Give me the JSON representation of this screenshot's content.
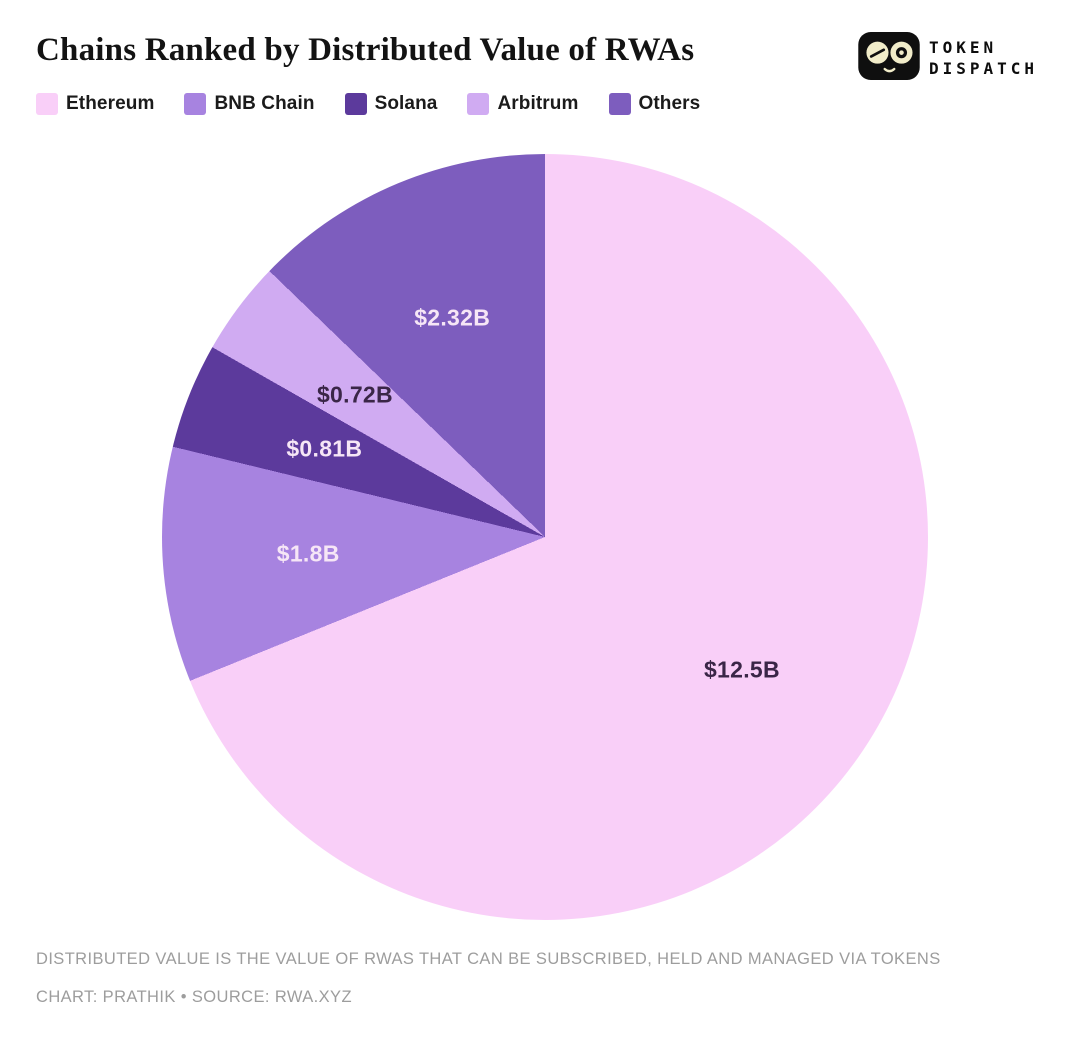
{
  "header": {
    "title": "Chains Ranked by Distributed Value of RWAs",
    "logo": {
      "line1": "TOKEN",
      "line2": "DISPATCH"
    }
  },
  "chart_data": {
    "type": "pie",
    "title": "Chains Ranked by Distributed Value of RWAs",
    "unit": "USD billions",
    "start_angle_deg": 0,
    "direction": "clockwise",
    "legend_position": "top",
    "total": 18.15,
    "slices": [
      {
        "name": "Ethereum",
        "value": 12.5,
        "label": "$12.5B",
        "color": "#f9cff8",
        "label_color": "#3a2647"
      },
      {
        "name": "BNB Chain",
        "value": 1.8,
        "label": "$1.8B",
        "color": "#a783e0",
        "label_color": "#f6e6f6"
      },
      {
        "name": "Solana",
        "value": 0.81,
        "label": "$0.81B",
        "color": "#5c3a9c",
        "label_color": "#f6e6f6"
      },
      {
        "name": "Arbitrum",
        "value": 0.72,
        "label": "$0.72B",
        "color": "#d0abf2",
        "label_color": "#3a2647"
      },
      {
        "name": "Others",
        "value": 2.32,
        "label": "$2.32B",
        "color": "#7d5dbe",
        "label_color": "#f6e6f6"
      }
    ]
  },
  "footer": {
    "line1": "DISTRIBUTED VALUE IS THE VALUE OF RWAS THAT CAN BE SUBSCRIBED, HELD AND MANAGED VIA TOKENS",
    "line2": "CHART: PRATHIK • SOURCE: RWA.XYZ"
  }
}
